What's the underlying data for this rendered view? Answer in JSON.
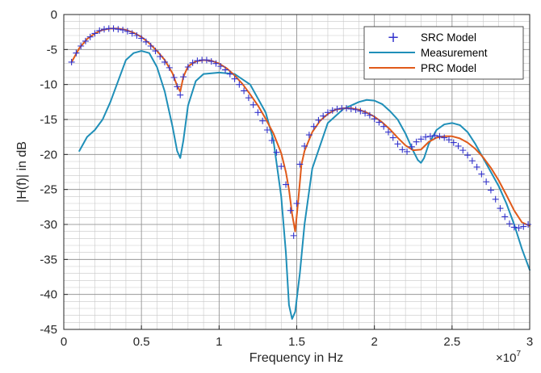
{
  "chart_data": {
    "type": "line",
    "title": "",
    "xlabel": "Frequency in Hz",
    "ylabel": "|H(f)| in dB",
    "x_exponent_label": "×10",
    "x_exponent_power": "7",
    "xlim": [
      0,
      3
    ],
    "ylim": [
      -45,
      0
    ],
    "xticks": [
      0,
      0.5,
      1,
      1.5,
      2,
      2.5,
      3
    ],
    "xtick_labels": [
      "0",
      "0.5",
      "1",
      "1.5",
      "2",
      "2.5",
      "3"
    ],
    "yticks": [
      0,
      -5,
      -10,
      -15,
      -20,
      -25,
      -30,
      -35,
      -40,
      -45
    ],
    "ytick_labels": [
      "0",
      "-5",
      "-10",
      "-15",
      "-20",
      "-25",
      "-30",
      "-35",
      "-40",
      "-45"
    ],
    "grid": true,
    "minor_grid": true,
    "legend_position": "top-right",
    "series": [
      {
        "name": "SRC Model",
        "style": "markers",
        "marker": "+",
        "color": "#3333cc",
        "x": [
          0.05,
          0.08,
          0.11,
          0.14,
          0.17,
          0.2,
          0.23,
          0.26,
          0.29,
          0.32,
          0.35,
          0.38,
          0.41,
          0.44,
          0.47,
          0.5,
          0.53,
          0.56,
          0.59,
          0.62,
          0.65,
          0.68,
          0.71,
          0.73,
          0.75,
          0.77,
          0.8,
          0.83,
          0.86,
          0.89,
          0.92,
          0.95,
          0.98,
          1.01,
          1.04,
          1.07,
          1.1,
          1.13,
          1.16,
          1.19,
          1.22,
          1.25,
          1.28,
          1.31,
          1.34,
          1.37,
          1.4,
          1.43,
          1.46,
          1.48,
          1.5,
          1.52,
          1.55,
          1.58,
          1.61,
          1.64,
          1.67,
          1.7,
          1.73,
          1.76,
          1.79,
          1.82,
          1.85,
          1.88,
          1.91,
          1.94,
          1.97,
          2.0,
          2.03,
          2.06,
          2.09,
          2.12,
          2.15,
          2.18,
          2.21,
          2.24,
          2.27,
          2.3,
          2.33,
          2.36,
          2.39,
          2.42,
          2.45,
          2.48,
          2.51,
          2.54,
          2.57,
          2.6,
          2.63,
          2.66,
          2.69,
          2.72,
          2.75,
          2.78,
          2.81,
          2.84,
          2.87,
          2.9,
          2.93,
          2.96,
          2.99
        ],
        "y": [
          -6.8,
          -5.5,
          -4.5,
          -3.8,
          -3.2,
          -2.7,
          -2.3,
          -2.1,
          -2.0,
          -2.0,
          -2.1,
          -2.2,
          -2.4,
          -2.7,
          -3.0,
          -3.4,
          -3.9,
          -4.5,
          -5.2,
          -6.0,
          -6.8,
          -7.6,
          -9.0,
          -10.3,
          -11.5,
          -8.9,
          -7.5,
          -6.9,
          -6.6,
          -6.5,
          -6.5,
          -6.7,
          -7.0,
          -7.4,
          -7.9,
          -8.5,
          -9.2,
          -10.0,
          -10.9,
          -11.9,
          -12.9,
          -14.0,
          -15.2,
          -16.5,
          -18.0,
          -19.7,
          -21.7,
          -24.3,
          -28.0,
          -31.6,
          -27.0,
          -21.4,
          -18.8,
          -17.2,
          -16.0,
          -15.1,
          -14.5,
          -14.0,
          -13.7,
          -13.5,
          -13.4,
          -13.4,
          -13.5,
          -13.6,
          -13.8,
          -14.1,
          -14.4,
          -14.9,
          -15.4,
          -16.0,
          -16.8,
          -17.6,
          -18.5,
          -19.3,
          -19.6,
          -18.9,
          -18.2,
          -17.8,
          -17.5,
          -17.4,
          -17.3,
          -17.4,
          -17.6,
          -17.9,
          -18.3,
          -18.8,
          -19.4,
          -20.1,
          -20.9,
          -21.8,
          -22.8,
          -23.9,
          -25.1,
          -26.4,
          -27.7,
          -28.9,
          -29.9,
          -30.4,
          -30.5,
          -30.3,
          -30.0
        ]
      },
      {
        "name": "Measurement",
        "style": "line",
        "color": "#1f8fb8",
        "x": [
          0.1,
          0.15,
          0.2,
          0.25,
          0.3,
          0.35,
          0.4,
          0.45,
          0.5,
          0.55,
          0.6,
          0.65,
          0.7,
          0.73,
          0.75,
          0.77,
          0.8,
          0.85,
          0.9,
          1.0,
          1.1,
          1.2,
          1.3,
          1.35,
          1.4,
          1.43,
          1.45,
          1.47,
          1.49,
          1.52,
          1.55,
          1.6,
          1.7,
          1.8,
          1.9,
          1.95,
          2.0,
          2.05,
          2.1,
          2.15,
          2.2,
          2.25,
          2.28,
          2.3,
          2.32,
          2.35,
          2.4,
          2.45,
          2.5,
          2.55,
          2.6,
          2.65,
          2.7,
          2.75,
          2.8,
          2.85,
          2.9,
          2.95,
          3.0
        ],
        "y": [
          -19.5,
          -17.5,
          -16.5,
          -15.0,
          -12.5,
          -9.5,
          -6.5,
          -5.5,
          -5.2,
          -5.5,
          -7.5,
          -11.0,
          -16.0,
          -19.5,
          -20.5,
          -18.0,
          -13.0,
          -9.5,
          -8.5,
          -8.3,
          -8.5,
          -10.0,
          -14.0,
          -18.0,
          -26.0,
          -34.0,
          -41.5,
          -43.5,
          -42.5,
          -37.0,
          -30.0,
          -22.0,
          -15.5,
          -13.5,
          -12.5,
          -12.2,
          -12.3,
          -12.8,
          -13.8,
          -15.0,
          -17.0,
          -19.5,
          -20.8,
          -21.2,
          -20.5,
          -18.5,
          -16.5,
          -15.7,
          -15.5,
          -15.8,
          -16.8,
          -18.5,
          -20.5,
          -22.5,
          -24.5,
          -27.0,
          -30.0,
          -33.5,
          -36.5
        ]
      },
      {
        "name": "PRC Model",
        "style": "line",
        "color": "#e05a1a",
        "x": [
          0.05,
          0.1,
          0.15,
          0.2,
          0.25,
          0.3,
          0.35,
          0.4,
          0.45,
          0.5,
          0.55,
          0.6,
          0.65,
          0.7,
          0.73,
          0.75,
          0.77,
          0.8,
          0.85,
          0.9,
          0.95,
          1.0,
          1.05,
          1.1,
          1.15,
          1.2,
          1.25,
          1.3,
          1.35,
          1.4,
          1.43,
          1.45,
          1.47,
          1.49,
          1.51,
          1.53,
          1.55,
          1.6,
          1.65,
          1.7,
          1.75,
          1.8,
          1.85,
          1.9,
          1.95,
          2.0,
          2.05,
          2.1,
          2.15,
          2.2,
          2.25,
          2.3,
          2.35,
          2.4,
          2.45,
          2.5,
          2.55,
          2.6,
          2.65,
          2.7,
          2.75,
          2.8,
          2.85,
          2.9,
          2.95,
          3.0
        ],
        "y": [
          -6.8,
          -4.8,
          -3.5,
          -2.7,
          -2.2,
          -2.0,
          -2.0,
          -2.2,
          -2.6,
          -3.2,
          -4.1,
          -5.2,
          -6.5,
          -8.4,
          -10.2,
          -11.0,
          -8.9,
          -7.4,
          -6.7,
          -6.5,
          -6.6,
          -7.0,
          -7.7,
          -8.7,
          -9.9,
          -11.4,
          -13.0,
          -14.9,
          -17.0,
          -19.8,
          -22.5,
          -25.0,
          -28.5,
          -31.0,
          -26.5,
          -21.5,
          -19.5,
          -16.8,
          -15.2,
          -14.2,
          -13.6,
          -13.4,
          -13.4,
          -13.6,
          -14.0,
          -14.6,
          -15.4,
          -16.4,
          -17.6,
          -18.7,
          -19.4,
          -19.3,
          -18.2,
          -17.6,
          -17.4,
          -17.4,
          -17.7,
          -18.3,
          -19.2,
          -20.4,
          -21.9,
          -23.7,
          -25.8,
          -28.0,
          -29.7,
          -30.2
        ]
      }
    ]
  }
}
